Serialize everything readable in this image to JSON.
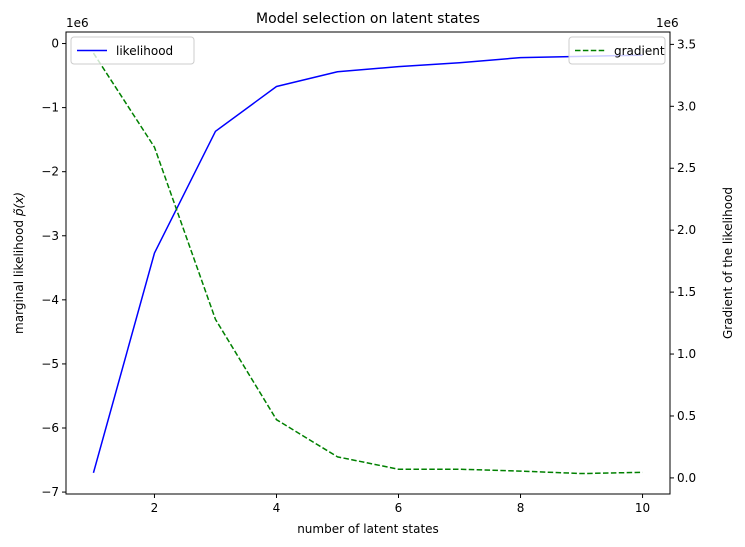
{
  "chart_data": {
    "type": "line",
    "title": "Model selection on latent states",
    "xlabel": "number of latent states",
    "x": [
      1,
      2,
      3,
      4,
      5,
      6,
      7,
      8,
      9,
      10
    ],
    "xlim": [
      0.55,
      10.45
    ],
    "xticks": [
      2,
      4,
      6,
      8,
      10
    ],
    "left_axis": {
      "label_prefix": "marginal likelihood ",
      "label_math": "p̃(x)",
      "offset_text": "1e6",
      "ylim": [
        -7.03,
        0.18
      ],
      "ticks": [
        0,
        -1,
        -2,
        -3,
        -4,
        -5,
        -6,
        -7
      ],
      "tick_labels": [
        "0",
        "−1",
        "−2",
        "−3",
        "−4",
        "−5",
        "−6",
        "−7"
      ]
    },
    "right_axis": {
      "label": "Gradient of the likelihood",
      "offset_text": "1e6",
      "ylim": [
        -0.13,
        3.6
      ],
      "ticks": [
        0.0,
        0.5,
        1.0,
        1.5,
        2.0,
        2.5,
        3.0,
        3.5
      ],
      "tick_labels": [
        "0.0",
        "0.5",
        "1.0",
        "1.5",
        "2.0",
        "2.5",
        "3.0",
        "3.5"
      ]
    },
    "series": [
      {
        "name": "likelihood",
        "axis": "left",
        "color": "#0000ff",
        "dash": "solid",
        "legend_position": "upper-left",
        "values": [
          -6.7,
          -3.27,
          -1.37,
          -0.67,
          -0.44,
          -0.36,
          -0.3,
          -0.22,
          -0.2,
          -0.18
        ]
      },
      {
        "name": "gradient",
        "axis": "right",
        "color": "#008000",
        "dash": "dashed",
        "legend_position": "upper-right",
        "values": [
          3.43,
          2.67,
          1.28,
          0.47,
          0.17,
          0.07,
          0.07,
          0.055,
          0.035,
          0.045
        ]
      }
    ]
  }
}
